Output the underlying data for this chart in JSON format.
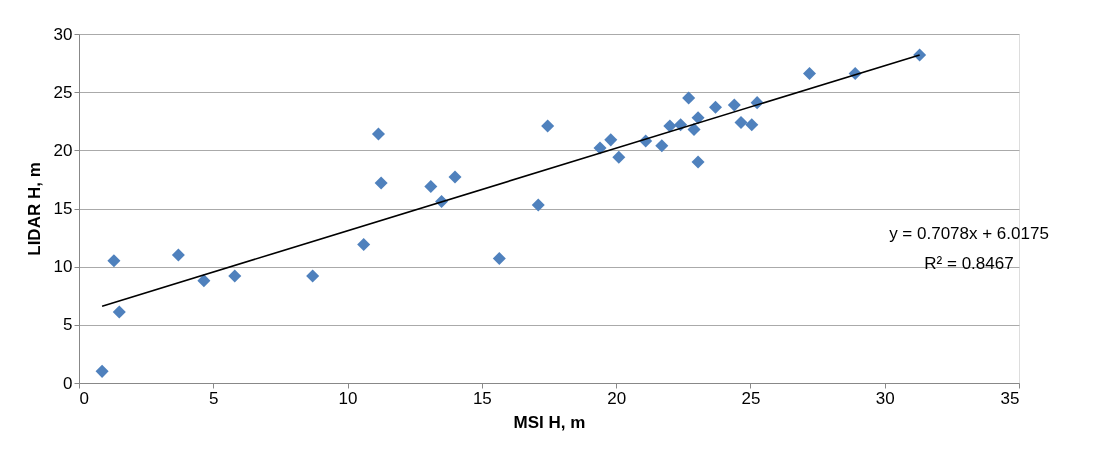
{
  "chart_data": {
    "type": "scatter",
    "xlabel": "MSI H, m",
    "ylabel": "LIDAR H, m",
    "xlim": [
      0,
      35
    ],
    "xticks": [
      0,
      5,
      10,
      15,
      20,
      25,
      30,
      35
    ],
    "ylim": [
      0,
      30
    ],
    "yticks": [
      0,
      5,
      10,
      15,
      20,
      25,
      30
    ],
    "grid": "y",
    "marker": "diamond",
    "series": [
      {
        "color": "#4f81bd",
        "x": [
          0.86,
          1.3,
          1.5,
          3.7,
          4.65,
          5.8,
          8.7,
          10.6,
          11.15,
          11.25,
          13.1,
          13.5,
          14.0,
          15.65,
          17.1,
          17.45,
          19.4,
          19.8,
          20.1,
          21.1,
          21.7,
          22.0,
          22.4,
          22.7,
          22.9,
          23.05,
          23.05,
          23.7,
          24.4,
          24.65,
          25.05,
          25.25,
          27.2,
          28.9,
          31.3
        ],
        "values": [
          1.0,
          10.5,
          6.1,
          11.0,
          8.8,
          9.2,
          9.2,
          11.9,
          21.4,
          17.2,
          16.9,
          15.6,
          17.7,
          10.7,
          15.3,
          22.1,
          20.2,
          20.9,
          19.4,
          20.8,
          20.4,
          22.1,
          22.2,
          24.5,
          21.8,
          22.8,
          19.0,
          23.7,
          23.9,
          22.4,
          22.2,
          24.1,
          26.6,
          26.6,
          28.2
        ]
      },
      {
        "type": "line",
        "color": "#000000",
        "marker": "none",
        "x": [
          0.86,
          31.3
        ],
        "values": [
          6.6,
          28.2
        ]
      }
    ],
    "annotations": [
      "y = 0.7078x + 6.0175",
      "R² = 0.8467"
    ]
  }
}
